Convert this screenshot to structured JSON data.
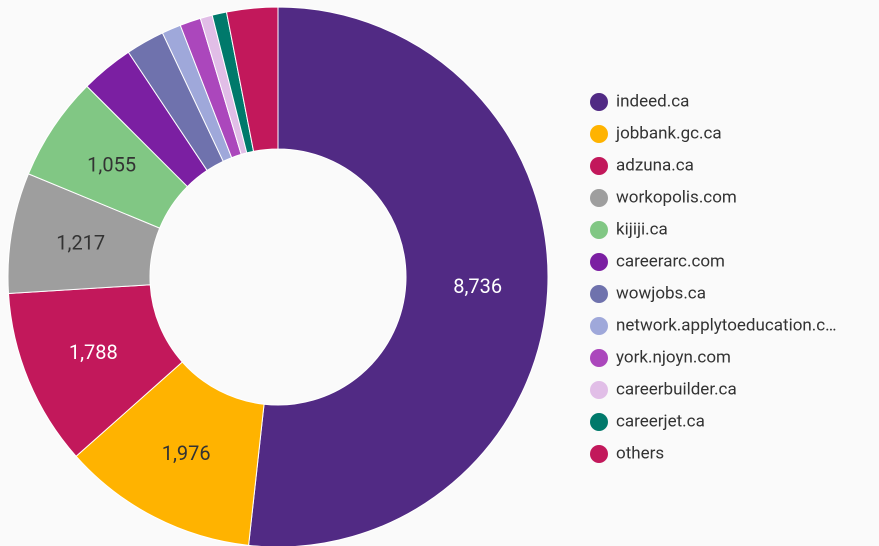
{
  "chart_data": {
    "type": "donut",
    "categories": [
      "indeed.ca",
      "jobbank.gc.ca",
      "adzuna.ca",
      "workopolis.com",
      "kijiji.ca",
      "careerarc.com",
      "wowjobs.ca",
      "network.applytoeducation.c…",
      "york.njoyn.com",
      "careerbuilder.ca",
      "careerjet.ca",
      "others"
    ],
    "values": [
      8736,
      1976,
      1788,
      1217,
      1055,
      535,
      390,
      193,
      211,
      122,
      146,
      516
    ],
    "value_labels": [
      "8,736",
      "1,976",
      "1,788",
      "1,217",
      "1,055",
      null,
      null,
      null,
      null,
      null,
      null,
      null
    ],
    "colors": [
      "#512a84",
      "#ffb300",
      "#c2185b",
      "#9e9e9e",
      "#81c784",
      "#7b1fa2",
      "#6f72ad",
      "#9fa8da",
      "#ab47bc",
      "#e1bee7",
      "#00796b",
      "#c2185b"
    ],
    "legend": "right"
  }
}
